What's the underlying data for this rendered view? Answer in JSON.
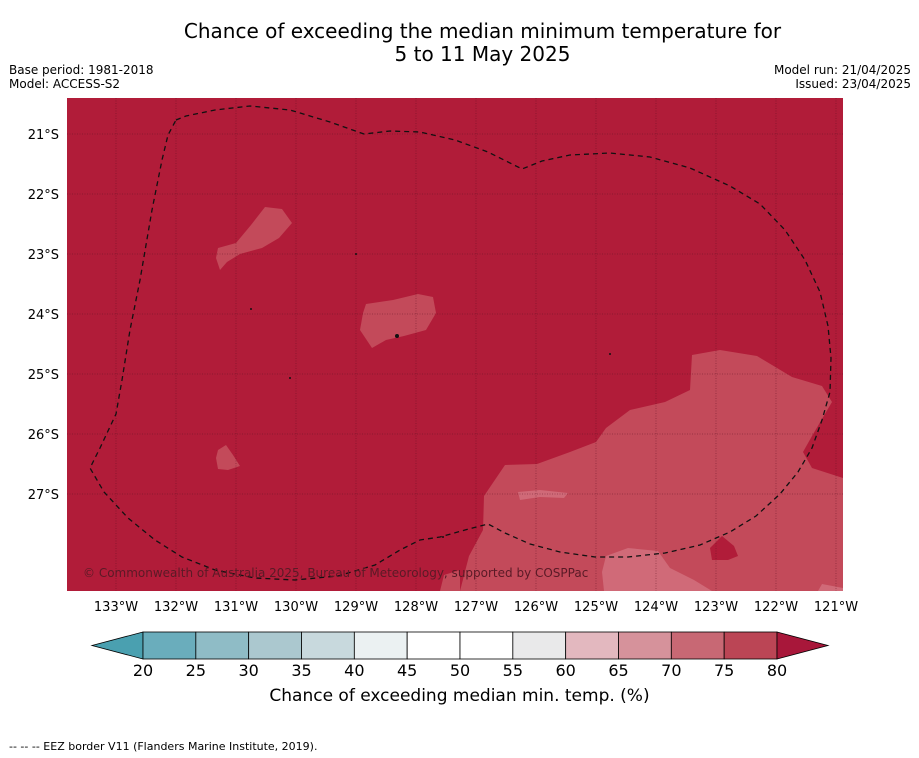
{
  "header": {
    "title_line1": "Chance of exceeding the median minimum temperature for",
    "title_line2": "5 to 11 May 2025",
    "base_period": "Base period: 1981-2018",
    "model": "Model: ACCESS-S2",
    "model_run": "Model run: 21/04/2025",
    "issued": "Issued: 23/04/2025"
  },
  "map": {
    "lat_labels": [
      "21°S",
      "22°S",
      "23°S",
      "24°S",
      "25°S",
      "26°S",
      "27°S"
    ],
    "lon_labels": [
      "133°W",
      "132°W",
      "131°W",
      "130°W",
      "129°W",
      "128°W",
      "127°W",
      "126°W",
      "125°W",
      "124°W",
      "123°W",
      "122°W",
      "121°W"
    ],
    "copyright": "© Commonwealth of Australia 2025, Bureau of Meteorology, supported by COSPPac",
    "colors": {
      "band_75_80": "#b11c39",
      "band_70_75": "#c34a5a",
      "band_65_70": "#d06a78",
      "grid": "#5a1020"
    }
  },
  "colorbar": {
    "ticks": [
      "20",
      "25",
      "30",
      "35",
      "40",
      "45",
      "50",
      "55",
      "60",
      "65",
      "70",
      "75",
      "80"
    ],
    "colors": [
      "#6aadbc",
      "#8fbcc6",
      "#abc8cf",
      "#c8d9dd",
      "#ebf1f2",
      "#ffffff",
      "#ffffff",
      "#e9e9ea",
      "#e3b8bf",
      "#d6929b",
      "#c86874",
      "#bb4555"
    ],
    "low_extend_color": "#4aa0b0",
    "high_extend_color": "#a8173a",
    "label": "Chance of exceeding median min. temp. (%)"
  },
  "legend": {
    "footnote": "-- -- -- EEZ border V11 (Flanders Marine Institute, 2019)."
  }
}
